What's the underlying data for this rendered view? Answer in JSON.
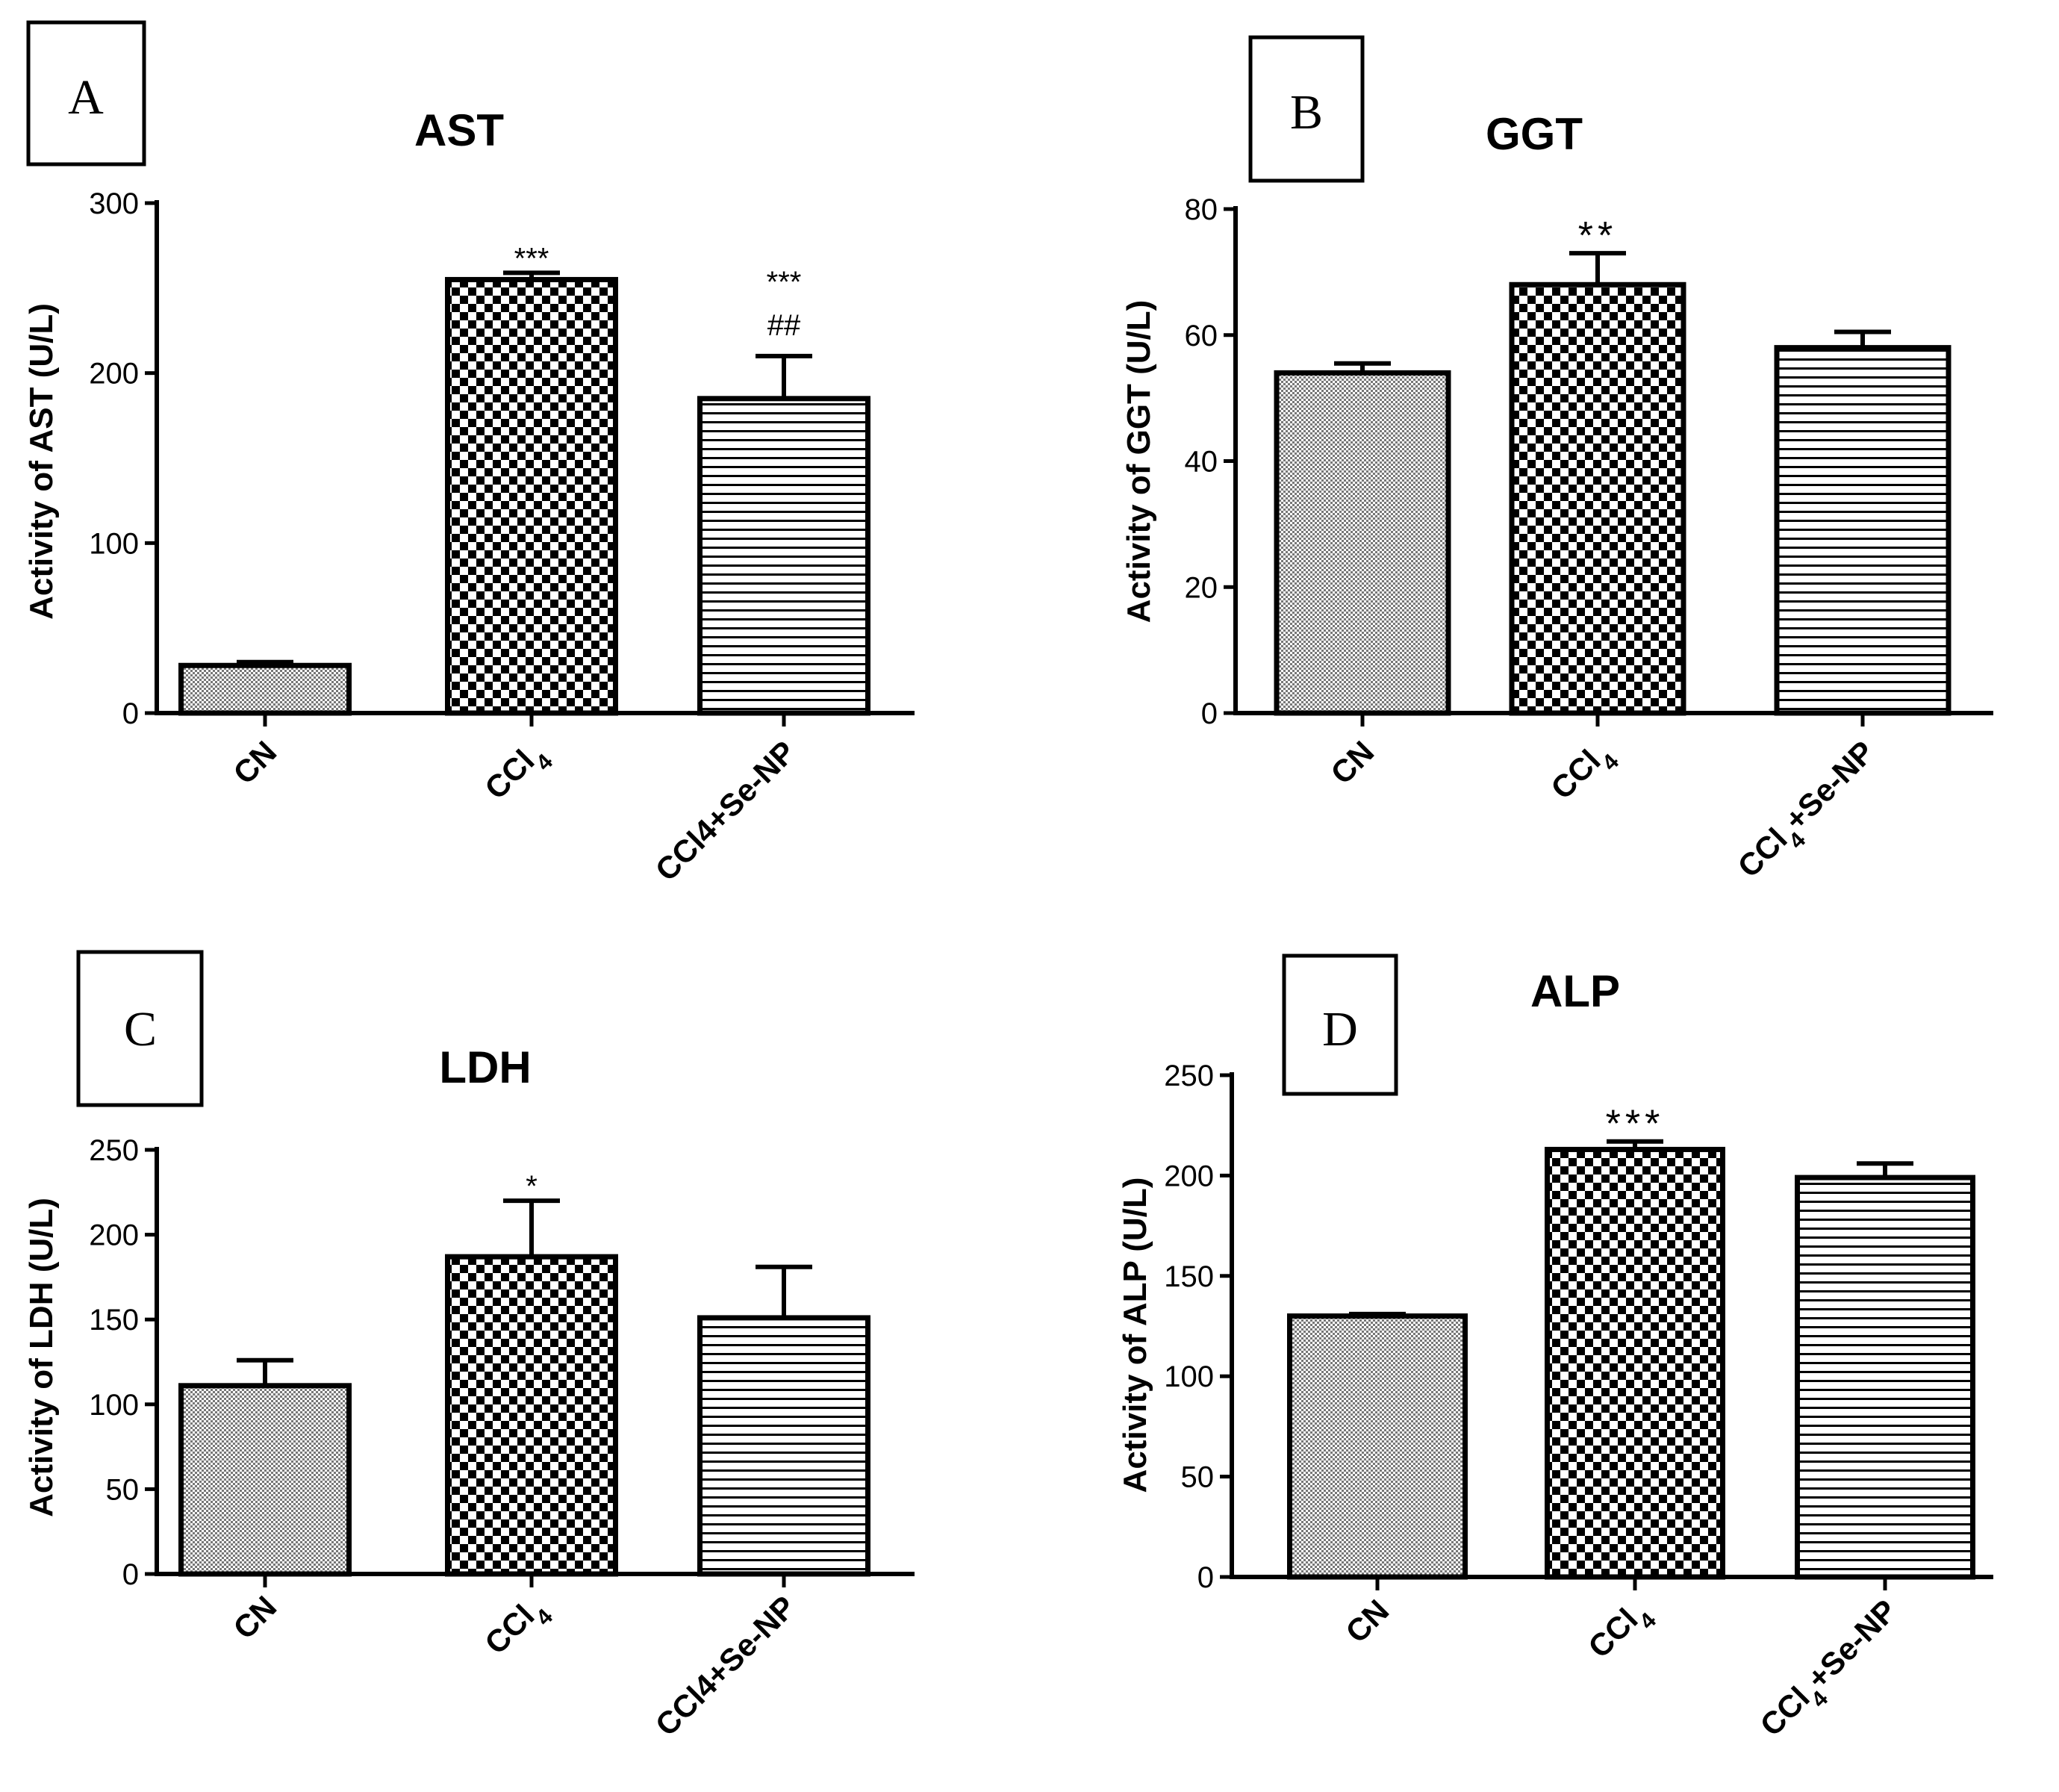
{
  "colors": {
    "ink": "#000000",
    "background": "#ffffff"
  },
  "chart_data": [
    {
      "panel": "A",
      "type": "bar",
      "title": "AST",
      "ylabel": "Activity of AST (U/L)",
      "xlabel": "",
      "ylim": [
        0,
        300
      ],
      "yticks": [
        "0",
        "100",
        "200",
        "300"
      ],
      "categories": [
        "CN",
        "CCl4",
        "CCl4+Se-NP"
      ],
      "category_labels": [
        {
          "base": "CN",
          "sub": "",
          "tail": ""
        },
        {
          "base": "CCl",
          "sub": "4",
          "tail": ""
        },
        {
          "base": "CCl4+Se-NP",
          "sub": "",
          "tail": ""
        }
      ],
      "values": [
        28,
        255,
        185
      ],
      "errors": [
        2,
        4,
        25
      ],
      "patterns": [
        "fine",
        "checker",
        "hlines"
      ],
      "significance": [
        [],
        [
          "***"
        ],
        [
          "***",
          "##"
        ]
      ]
    },
    {
      "panel": "B",
      "type": "bar",
      "title": "GGT",
      "ylabel": "Activity of GGT (U/L)",
      "xlabel": "",
      "ylim": [
        0,
        80
      ],
      "yticks": [
        "0",
        "20",
        "40",
        "60",
        "80"
      ],
      "categories": [
        "CN",
        "CCl4",
        "CCl4+Se-NP"
      ],
      "category_labels": [
        {
          "base": "CN",
          "sub": "",
          "tail": ""
        },
        {
          "base": "CCl",
          "sub": "4",
          "tail": ""
        },
        {
          "base": "CCl",
          "sub": "4",
          "tail": "+Se-NP"
        }
      ],
      "values": [
        54,
        68,
        58
      ],
      "errors": [
        1.5,
        5,
        2.5
      ],
      "patterns": [
        "fine",
        "checker",
        "hlines"
      ],
      "significance": [
        [],
        [
          "**"
        ],
        []
      ]
    },
    {
      "panel": "C",
      "type": "bar",
      "title": "LDH",
      "ylabel": "Activity of LDH (U/L)",
      "xlabel": "",
      "ylim": [
        0,
        250
      ],
      "yticks": [
        "0",
        "50",
        "100",
        "150",
        "200",
        "250"
      ],
      "categories": [
        "CN",
        "CCl4",
        "CCl4+Se-NP"
      ],
      "category_labels": [
        {
          "base": "CN",
          "sub": "",
          "tail": ""
        },
        {
          "base": "CCl",
          "sub": "4",
          "tail": ""
        },
        {
          "base": "CCl4+Se-NP",
          "sub": "",
          "tail": ""
        }
      ],
      "values": [
        111,
        187,
        151
      ],
      "errors": [
        15,
        33,
        30
      ],
      "patterns": [
        "fine",
        "checker",
        "hlines"
      ],
      "significance": [
        [],
        [
          "*"
        ],
        []
      ]
    },
    {
      "panel": "D",
      "type": "bar",
      "title": "ALP",
      "ylabel": "Activity of ALP (U/L)",
      "xlabel": "",
      "ylim": [
        0,
        250
      ],
      "yticks": [
        "0",
        "50",
        "100",
        "150",
        "200",
        "250"
      ],
      "categories": [
        "CN",
        "CCl4",
        "CCl4+Se-NP"
      ],
      "category_labels": [
        {
          "base": "CN",
          "sub": "",
          "tail": ""
        },
        {
          "base": "CCl",
          "sub": "4",
          "tail": ""
        },
        {
          "base": "CCl",
          "sub": "4",
          "tail": "+Se-NP"
        }
      ],
      "values": [
        130,
        213,
        199
      ],
      "errors": [
        1,
        4,
        7
      ],
      "patterns": [
        "fine",
        "checker",
        "hlines"
      ],
      "significance": [
        [],
        [
          "***"
        ],
        []
      ]
    }
  ]
}
